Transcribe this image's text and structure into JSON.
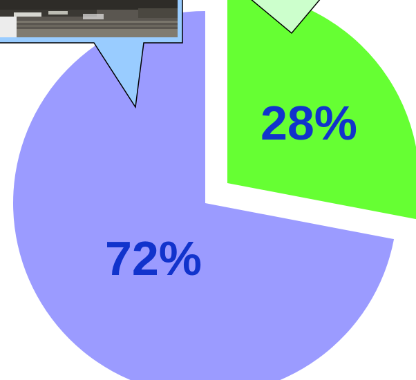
{
  "chart_data": {
    "type": "pie",
    "slices": [
      {
        "value": 72,
        "label": "72%",
        "color": "#9b9bff",
        "exploded": false
      },
      {
        "value": 28,
        "label": "28%",
        "color": "#66ff33",
        "exploded": true
      }
    ],
    "label_color": "#1133cc"
  },
  "callouts": [
    {
      "kind": "photo-callout",
      "fill": "#99ccff",
      "content": "train-photo"
    },
    {
      "kind": "empty-callout",
      "fill": "#ccffcc"
    }
  ]
}
